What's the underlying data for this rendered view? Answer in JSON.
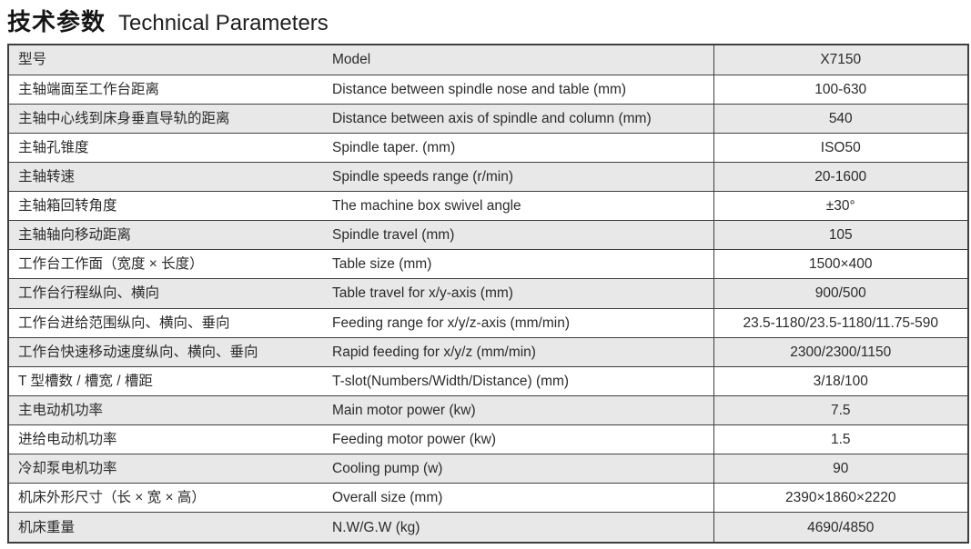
{
  "title": {
    "zh": "技术参数",
    "en": "Technical Parameters"
  },
  "table": {
    "columns": [
      "parameter-zh",
      "parameter-en",
      "value"
    ],
    "rows": [
      {
        "zh": "型号",
        "en": "Model",
        "value": "X7150"
      },
      {
        "zh": "主轴端面至工作台距离",
        "en": "Distance between spindle nose and table (mm)",
        "value": "100-630"
      },
      {
        "zh": "主轴中心线到床身垂直导轨的距离",
        "en": "Distance between axis of spindle and column (mm)",
        "value": "540"
      },
      {
        "zh": "主轴孔锥度",
        "en": "Spindle taper. (mm)",
        "value": "ISO50"
      },
      {
        "zh": "主轴转速",
        "en": "Spindle speeds range (r/min)",
        "value": "20-1600"
      },
      {
        "zh": "主轴箱回转角度",
        "en": "The machine box swivel angle",
        "value": "±30°"
      },
      {
        "zh": "主轴轴向移动距离",
        "en": "Spindle travel (mm)",
        "value": "105"
      },
      {
        "zh": "工作台工作面（宽度 × 长度）",
        "en": "Table size (mm)",
        "value": "1500×400"
      },
      {
        "zh": "工作台行程纵向、横向",
        "en": "Table travel for x/y-axis (mm)",
        "value": "900/500"
      },
      {
        "zh": "工作台进给范围纵向、横向、垂向",
        "en": "Feeding range for x/y/z-axis (mm/min)",
        "value": "23.5-1180/23.5-1180/11.75-590"
      },
      {
        "zh": "工作台快速移动速度纵向、横向、垂向",
        "en": "Rapid feeding for x/y/z (mm/min)",
        "value": "2300/2300/1150"
      },
      {
        "zh": "T 型槽数 / 槽宽 / 槽距",
        "en": "T-slot(Numbers/Width/Distance) (mm)",
        "value": "3/18/100"
      },
      {
        "zh": "主电动机功率",
        "en": "Main motor power (kw)",
        "value": "7.5"
      },
      {
        "zh": "进给电动机功率",
        "en": "Feeding motor power (kw)",
        "value": "1.5"
      },
      {
        "zh": "冷却泵电机功率",
        "en": "Cooling pump (w)",
        "value": "90"
      },
      {
        "zh": "机床外形尺寸（长 × 宽 × 高）",
        "en": "Overall size (mm)",
        "value": "2390×1860×2220"
      },
      {
        "zh": "机床重量",
        "en": "N.W/G.W (kg)",
        "value": "4690/4850"
      }
    ],
    "colors": {
      "row_alt_background": "#e8e8e8",
      "border": "#3f3f3f",
      "text": "#2b2b2b"
    }
  }
}
